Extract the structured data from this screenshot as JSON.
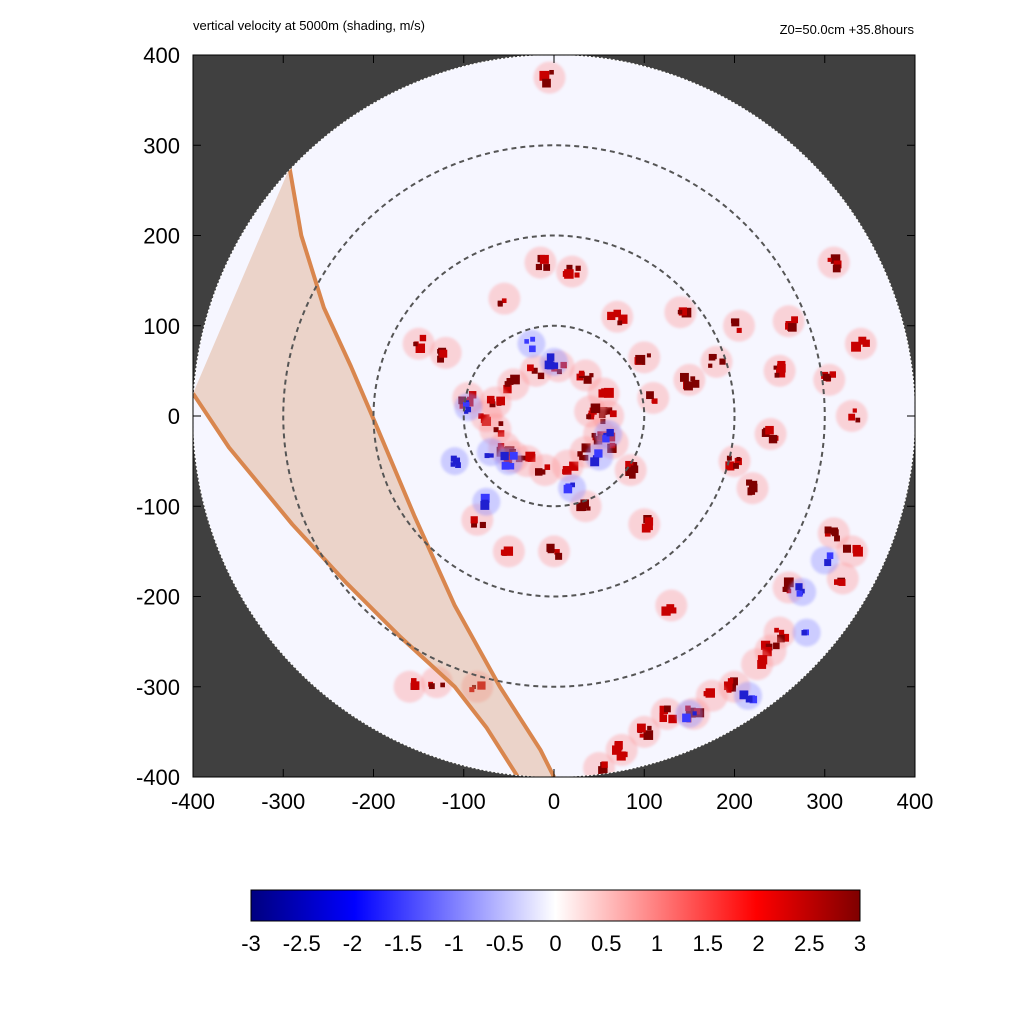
{
  "header": {
    "title": "vertical velocity at 5000m (shading, m/s)",
    "info": "Z0=50.0cm  +35.8hours"
  },
  "colors": {
    "outside_domain": "#404040",
    "inside_domain": "#f6f6ff",
    "dashed_circle": "#555555",
    "band_fill": "#d99a72",
    "band_edge": "#d9864e",
    "cmap_min": "#00007f",
    "cmap_mid": "#ffffff",
    "cmap_max": "#7f0000"
  },
  "chart_data": {
    "type": "heatmap",
    "title": "vertical velocity at 5000m (shading, m/s)",
    "annotation": "Z0=50.0cm  +35.8hours",
    "xlim": [
      -400,
      400
    ],
    "ylim": [
      -400,
      400
    ],
    "x_ticks": [
      -400,
      -300,
      -200,
      -100,
      0,
      100,
      200,
      300,
      400
    ],
    "y_ticks": [
      -400,
      -300,
      -200,
      -100,
      0,
      100,
      200,
      300,
      400
    ],
    "x_tick_labels": [
      "-400",
      "-300",
      "-200",
      "-100",
      "0",
      "100",
      "200",
      "300",
      "400"
    ],
    "y_tick_labels": [
      "400",
      "300",
      "200",
      "100",
      "0",
      "-100",
      "-200",
      "-300",
      "-400"
    ],
    "domain_radius": 400,
    "range_rings": [
      100,
      200,
      300
    ],
    "band_boundaries": [
      [
        [
          -293,
          275
        ],
        [
          -280,
          200
        ],
        [
          -255,
          120
        ],
        [
          -225,
          55
        ],
        [
          -195,
          -15
        ],
        [
          -155,
          -110
        ],
        [
          -110,
          -210
        ],
        [
          -60,
          -300
        ],
        [
          -15,
          -370
        ],
        [
          0,
          -400
        ]
      ],
      [
        [
          -400,
          25
        ],
        [
          -360,
          -35
        ],
        [
          -290,
          -120
        ],
        [
          -230,
          -185
        ],
        [
          -170,
          -245
        ],
        [
          -110,
          -300
        ],
        [
          -75,
          -345
        ],
        [
          -40,
          -400
        ]
      ]
    ],
    "colorbar": {
      "min": -3,
      "max": 3,
      "ticks": [
        -3,
        -2.5,
        -2,
        -1.5,
        -1,
        -0.5,
        0,
        0.5,
        1,
        1.5,
        2,
        2.5,
        3
      ],
      "tick_labels": [
        "-3",
        "-2.5",
        "-2",
        "-1.5",
        "-1",
        "-0.5",
        "0",
        "0.5",
        "1",
        "1.5",
        "2",
        "2.5",
        "3"
      ]
    },
    "updraft_cells": [
      [
        -75,
        0
      ],
      [
        -65,
        -15
      ],
      [
        -55,
        -35
      ],
      [
        -45,
        -45
      ],
      [
        -30,
        -50
      ],
      [
        -10,
        -60
      ],
      [
        15,
        -55
      ],
      [
        35,
        -40
      ],
      [
        50,
        -20
      ],
      [
        60,
        0
      ],
      [
        55,
        25
      ],
      [
        35,
        45
      ],
      [
        5,
        55
      ],
      [
        -20,
        50
      ],
      [
        -45,
        35
      ],
      [
        -65,
        15
      ],
      [
        40,
        5
      ],
      [
        65,
        -30
      ],
      [
        -120,
        70
      ],
      [
        -95,
        20
      ],
      [
        -85,
        -115
      ],
      [
        -50,
        -150
      ],
      [
        0,
        -150
      ],
      [
        35,
        -100
      ],
      [
        85,
        -60
      ],
      [
        110,
        20
      ],
      [
        100,
        65
      ],
      [
        70,
        110
      ],
      [
        20,
        160
      ],
      [
        -15,
        170
      ],
      [
        -55,
        130
      ],
      [
        -150,
        80
      ],
      [
        100,
        -120
      ],
      [
        -5,
        375
      ],
      [
        200,
        -50
      ],
      [
        220,
        -80
      ],
      [
        240,
        -20
      ],
      [
        250,
        50
      ],
      [
        305,
        40
      ],
      [
        330,
        0
      ],
      [
        310,
        -130
      ],
      [
        320,
        -180
      ],
      [
        330,
        -150
      ],
      [
        260,
        -190
      ],
      [
        250,
        -240
      ],
      [
        240,
        -260
      ],
      [
        225,
        -275
      ],
      [
        200,
        -300
      ],
      [
        175,
        -310
      ],
      [
        155,
        -330
      ],
      [
        125,
        -330
      ],
      [
        100,
        -350
      ],
      [
        75,
        -370
      ],
      [
        50,
        -390
      ],
      [
        -85,
        -300
      ],
      [
        -130,
        -295
      ],
      [
        -160,
        -300
      ],
      [
        140,
        115
      ],
      [
        205,
        100
      ],
      [
        260,
        105
      ],
      [
        310,
        170
      ],
      [
        340,
        80
      ],
      [
        150,
        40
      ],
      [
        180,
        60
      ],
      [
        130,
        -210
      ]
    ],
    "downdraft_cells": [
      [
        -70,
        -40
      ],
      [
        -50,
        -50
      ],
      [
        0,
        60
      ],
      [
        60,
        -20
      ],
      [
        50,
        -45
      ],
      [
        -95,
        10
      ],
      [
        -110,
        -50
      ],
      [
        -75,
        -95
      ],
      [
        20,
        -80
      ],
      [
        275,
        -195
      ],
      [
        300,
        -160
      ],
      [
        280,
        -240
      ],
      [
        215,
        -310
      ],
      [
        150,
        -330
      ],
      [
        -25,
        80
      ]
    ]
  }
}
